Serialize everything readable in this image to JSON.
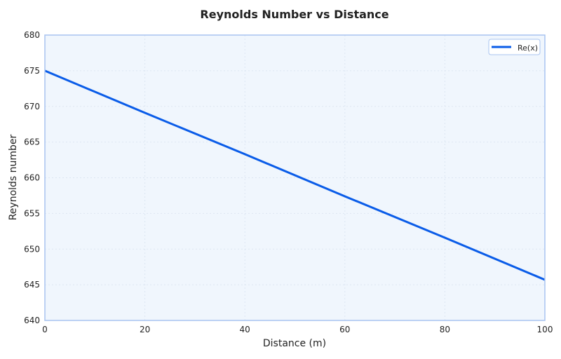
{
  "chart_data": {
    "type": "line",
    "title": "Reynolds Number vs Distance",
    "xlabel": "Distance (m)",
    "ylabel": "Reynolds number",
    "xlim": [
      0,
      100
    ],
    "ylim": [
      640,
      680
    ],
    "xticks": [
      0,
      20,
      40,
      60,
      80,
      100
    ],
    "yticks": [
      640,
      645,
      650,
      655,
      660,
      665,
      670,
      675,
      680
    ],
    "grid": true,
    "legend_position": "top-right",
    "series": [
      {
        "name": "Re(x)",
        "color": "#0a5ce8",
        "x": [
          0,
          20,
          40,
          60,
          80,
          100
        ],
        "y": [
          675.0,
          669.1,
          663.3,
          657.4,
          651.6,
          645.7
        ]
      }
    ],
    "colors": {
      "plot_background": "#f0f6fd",
      "axis_border": "#a8c4f0",
      "grid": "#dde6f2"
    }
  }
}
